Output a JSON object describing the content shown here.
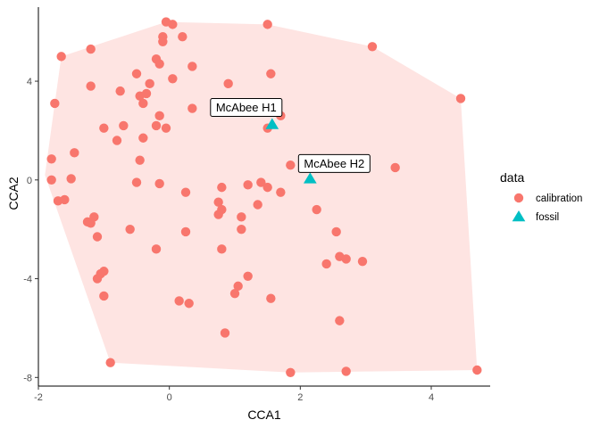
{
  "chart_data": {
    "type": "scatter",
    "xlabel": "CCA1",
    "ylabel": "CCA2",
    "xlim": [
      -2.0,
      4.9
    ],
    "ylim": [
      -8.35,
      7.0
    ],
    "x_ticks": [
      -2,
      0,
      2,
      4
    ],
    "y_ticks": [
      -8,
      -4,
      0,
      4
    ],
    "grid": false,
    "legend": {
      "title": "data",
      "position": "right",
      "entries": [
        {
          "label": "calibration",
          "shape": "circle",
          "color": "#F8766D"
        },
        {
          "label": "fossil",
          "shape": "triangle",
          "color": "#00BFC4"
        }
      ]
    },
    "hull": {
      "color": "#F8766D",
      "opacity": 0.2,
      "points": [
        [
          -0.05,
          6.4
        ],
        [
          1.5,
          6.3
        ],
        [
          3.1,
          5.4
        ],
        [
          4.45,
          3.3
        ],
        [
          4.7,
          -7.7
        ],
        [
          1.85,
          -7.8
        ],
        [
          -0.9,
          -7.4
        ],
        [
          -1.9,
          0.2
        ],
        [
          -1.75,
          3.1
        ],
        [
          -1.65,
          5.0
        ]
      ]
    },
    "series": [
      {
        "name": "calibration",
        "color": "#F8766D",
        "shape": "circle",
        "points": [
          [
            -0.05,
            6.4
          ],
          [
            0.05,
            6.3
          ],
          [
            1.5,
            6.3
          ],
          [
            0.2,
            5.8
          ],
          [
            -0.1,
            5.8
          ],
          [
            -0.1,
            5.6
          ],
          [
            -1.2,
            5.3
          ],
          [
            -1.65,
            5.0
          ],
          [
            3.1,
            5.4
          ],
          [
            -0.2,
            4.9
          ],
          [
            -0.15,
            4.7
          ],
          [
            0.35,
            4.6
          ],
          [
            -0.5,
            4.3
          ],
          [
            1.55,
            4.3
          ],
          [
            0.05,
            4.1
          ],
          [
            -0.3,
            3.9
          ],
          [
            0.9,
            3.9
          ],
          [
            -1.2,
            3.8
          ],
          [
            -0.75,
            3.6
          ],
          [
            -0.45,
            3.4
          ],
          [
            -0.35,
            3.5
          ],
          [
            4.45,
            3.3
          ],
          [
            -1.75,
            3.1
          ],
          [
            -0.4,
            3.1
          ],
          [
            0.35,
            2.9
          ],
          [
            1.2,
            2.8
          ],
          [
            -0.15,
            2.6
          ],
          [
            1.7,
            2.6
          ],
          [
            -1.0,
            2.1
          ],
          [
            -0.7,
            2.2
          ],
          [
            -0.2,
            2.2
          ],
          [
            -0.05,
            2.1
          ],
          [
            1.5,
            2.1
          ],
          [
            -0.8,
            1.6
          ],
          [
            -0.4,
            1.7
          ],
          [
            -1.45,
            1.1
          ],
          [
            -0.45,
            0.8
          ],
          [
            -1.8,
            0.85
          ],
          [
            1.85,
            0.6
          ],
          [
            3.45,
            0.5
          ],
          [
            -1.8,
            0.0
          ],
          [
            -1.5,
            0.05
          ],
          [
            -0.5,
            -0.1
          ],
          [
            -0.15,
            -0.15
          ],
          [
            1.2,
            -0.2
          ],
          [
            1.4,
            -0.1
          ],
          [
            1.5,
            -0.3
          ],
          [
            0.8,
            -0.3
          ],
          [
            1.7,
            -0.5
          ],
          [
            0.25,
            -0.5
          ],
          [
            -1.7,
            -0.85
          ],
          [
            -1.6,
            -0.8
          ],
          [
            0.75,
            -0.9
          ],
          [
            0.8,
            -1.2
          ],
          [
            1.35,
            -1.0
          ],
          [
            0.75,
            -1.4
          ],
          [
            2.25,
            -1.2
          ],
          [
            1.1,
            -1.5
          ],
          [
            -1.15,
            -1.5
          ],
          [
            -1.25,
            -1.7
          ],
          [
            -1.2,
            -1.75
          ],
          [
            -0.6,
            -2.0
          ],
          [
            0.25,
            -2.1
          ],
          [
            2.55,
            -2.1
          ],
          [
            1.1,
            -2.0
          ],
          [
            -1.1,
            -2.3
          ],
          [
            -0.2,
            -2.8
          ],
          [
            0.8,
            -2.8
          ],
          [
            2.6,
            -3.1
          ],
          [
            2.7,
            -3.2
          ],
          [
            2.4,
            -3.4
          ],
          [
            2.95,
            -3.3
          ],
          [
            -1.0,
            -3.7
          ],
          [
            -1.05,
            -3.8
          ],
          [
            -1.1,
            -4.0
          ],
          [
            1.2,
            -3.9
          ],
          [
            1.05,
            -4.3
          ],
          [
            1.0,
            -4.6
          ],
          [
            -1.0,
            -4.7
          ],
          [
            0.15,
            -4.9
          ],
          [
            0.3,
            -5.0
          ],
          [
            1.55,
            -4.8
          ],
          [
            2.6,
            -5.7
          ],
          [
            0.85,
            -6.2
          ],
          [
            -0.9,
            -7.4
          ],
          [
            1.85,
            -7.8
          ],
          [
            2.7,
            -7.75
          ],
          [
            4.7,
            -7.7
          ]
        ]
      },
      {
        "name": "fossil",
        "color": "#00BFC4",
        "shape": "triangle",
        "points": [
          [
            1.57,
            2.25
          ],
          [
            2.15,
            0.05
          ]
        ]
      }
    ],
    "annotations": [
      {
        "text": "McAbee H1",
        "x": 1.57,
        "y": 2.25
      },
      {
        "text": "McAbee H2",
        "x": 2.15,
        "y": 0.05
      }
    ]
  }
}
